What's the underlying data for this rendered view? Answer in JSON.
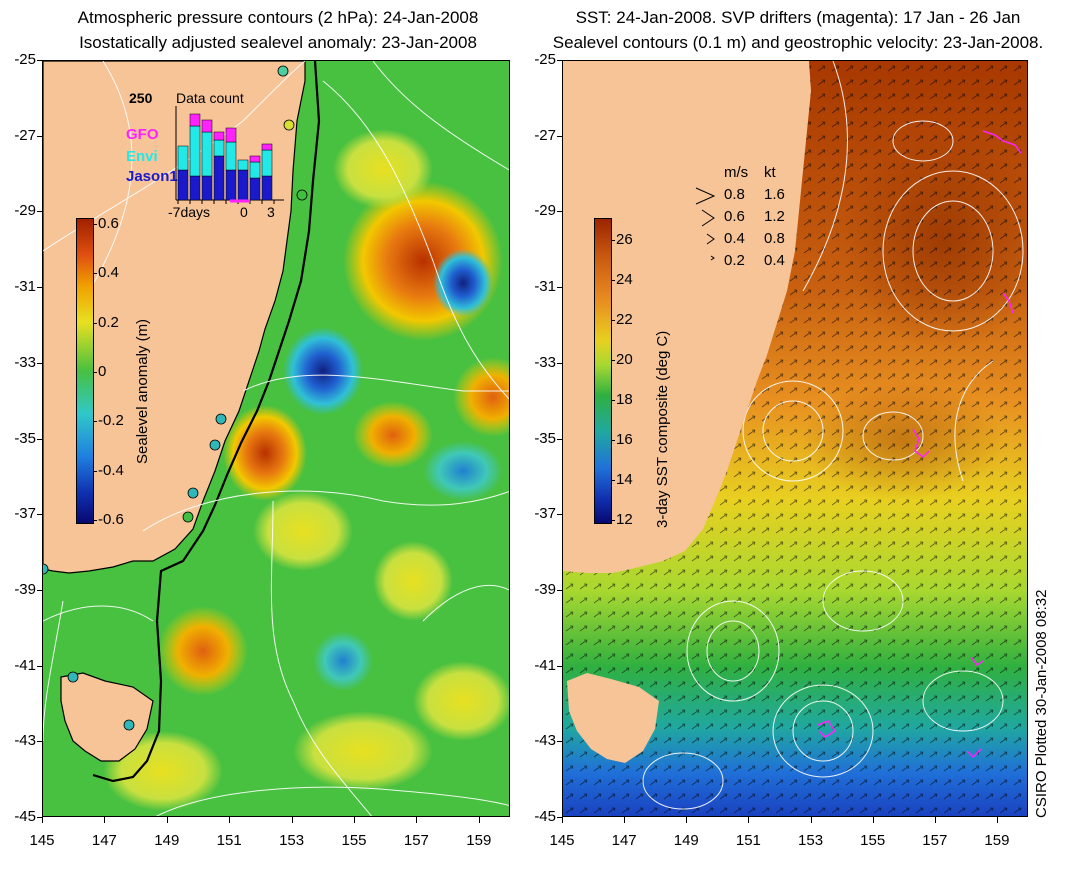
{
  "left_panel": {
    "title_line1": "Atmospheric pressure contours (2 hPa): 24-Jan-2008",
    "title_line2": "Isostatically adjusted sealevel anomaly: 23-Jan-2008",
    "colorbar_label": "Sealevel anomaly (m)",
    "colorbar_ticks": [
      "0.6",
      "0.4",
      "0.2",
      "0",
      "-0.2",
      "-0.4",
      "-0.6"
    ],
    "inset": {
      "title": "Data count",
      "ymax_label": "250",
      "legend": [
        "GFO",
        "Envi",
        "Jason1"
      ],
      "xlabels": [
        "-7days",
        "0",
        "3"
      ],
      "colors": {
        "GFO": "#ff22ff",
        "Envi": "#22e8e8",
        "Jason1": "#1a1acc"
      }
    }
  },
  "right_panel": {
    "title_line1": "SST: 24-Jan-2008. SVP drifters (magenta): 17 Jan - 26 Jan",
    "title_line2": "Sealevel contours (0.1 m) and geostrophic velocity: 23-Jan-2008.",
    "colorbar_label": "3-day SST composite (deg C)",
    "colorbar_ticks": [
      "26",
      "24",
      "22",
      "20",
      "18",
      "16",
      "14",
      "12"
    ],
    "velocity_legend": {
      "header_ms": "m/s",
      "header_kt": "kt",
      "rows": [
        {
          "ms": "0.8",
          "kt": "1.6"
        },
        {
          "ms": "0.6",
          "kt": "1.2"
        },
        {
          "ms": "0.4",
          "kt": "0.8"
        },
        {
          "ms": "0.2",
          "kt": "0.4"
        }
      ]
    }
  },
  "axes": {
    "lat_labels": [
      "-25",
      "-27",
      "-29",
      "-31",
      "-33",
      "-35",
      "-37",
      "-39",
      "-41",
      "-43",
      "-45"
    ],
    "lon_labels": [
      "145",
      "147",
      "149",
      "151",
      "153",
      "155",
      "157",
      "159"
    ]
  },
  "credit": "CSIRO Plotted 30-Jan-2008 08:32",
  "colors": {
    "land": "#f7c497",
    "coastline": "#000000"
  }
}
